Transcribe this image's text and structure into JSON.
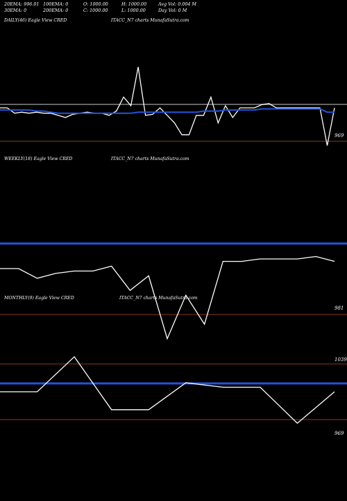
{
  "header": {
    "row1": [
      "20EMA: 996.01",
      "100EMA: 0",
      "O: 1000.00",
      "H: 1000.00",
      "Avg Vol: 0.004 M"
    ],
    "row2": [
      "30EMA: 0",
      "200EMA: 0",
      "C: 1000.00",
      "L: 1000.00",
      "Day Vol: 0 M"
    ]
  },
  "colors": {
    "price_line": "#ffffff",
    "ema_line": "#2255dd",
    "level_line": "#8a3a1a",
    "background": "#000000"
  },
  "chart_data": [
    {
      "type": "line",
      "title": "DAILY(46) Eagle  View  CRED",
      "subtitle": "ITACC_N7 charts MunafaSutra.com",
      "level_labels": [
        "969"
      ],
      "series": [
        {
          "values": [
            1000,
            1000,
            995,
            996,
            995,
            996,
            995,
            995,
            993,
            991,
            994,
            995,
            996,
            995,
            995,
            993,
            997,
            1010,
            1002,
            1038,
            993,
            994,
            1000,
            993,
            986,
            975,
            975,
            993,
            993,
            1010,
            986,
            1002,
            991,
            1000,
            1000,
            1000,
            1003,
            1004,
            1000,
            1000,
            1000,
            1000,
            1000,
            1000,
            1000,
            965,
            1000
          ]
        },
        {
          "values": [
            998,
            998,
            998,
            998,
            998,
            997,
            997,
            996,
            995,
            995,
            995,
            995,
            995,
            995,
            995,
            995,
            995,
            995,
            995,
            996,
            996,
            996,
            996,
            996,
            996,
            996,
            996,
            996,
            997,
            997,
            997,
            998,
            998,
            998,
            998,
            998,
            999,
            999,
            999,
            999,
            999,
            999,
            999,
            999,
            999,
            996,
            996
          ]
        }
      ]
    },
    {
      "type": "line",
      "title": "WEEKLY(18) Eagle  View  CRED",
      "subtitle": "ITACC_N7 charts MunafaSutra.com",
      "level_labels": [
        "981"
      ],
      "series": [
        {
          "values": [
            1000,
            1000,
            996,
            998,
            999,
            999,
            1001,
            991,
            997,
            971,
            989,
            977,
            1003,
            1003,
            1004,
            1004,
            1004,
            1005,
            1003
          ]
        }
      ]
    },
    {
      "type": "line",
      "title": "MONTHLY(9) Eagle  View  CRED",
      "subtitle": "ITACC_N7 charts MunafaSutra.com",
      "level_labels": [
        "1039",
        "969"
      ],
      "series": [
        {
          "values": [
            1000,
            1000,
            1039,
            980,
            980,
            1010,
            1005,
            1005,
            965,
            1000
          ]
        }
      ]
    }
  ]
}
